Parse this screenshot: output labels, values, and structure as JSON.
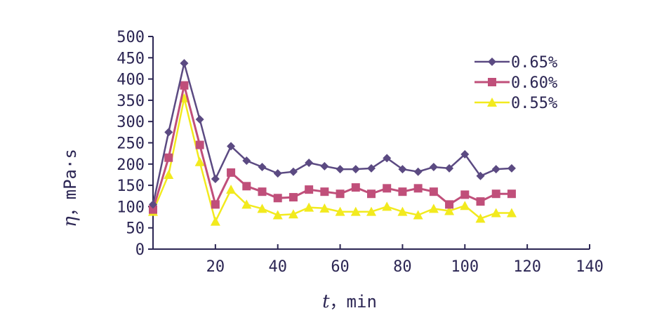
{
  "chart_data": {
    "type": "line",
    "ylabel_symbol": "η",
    "ylabel_unit": "，mPa·s",
    "xlabel_symbol": "t",
    "xlabel_unit": "，min",
    "xlim": [
      0,
      140
    ],
    "ylim": [
      0,
      500
    ],
    "x_ticks": [
      "20",
      "40",
      "60",
      "80",
      "100",
      "120",
      "140"
    ],
    "y_ticks": [
      "0",
      "50",
      "100",
      "150",
      "200",
      "250",
      "300",
      "350",
      "400",
      "450",
      "500"
    ],
    "grid": false,
    "legend_position": "top-right",
    "x": [
      0,
      5,
      10,
      15,
      20,
      25,
      30,
      35,
      40,
      45,
      50,
      55,
      60,
      65,
      70,
      75,
      80,
      85,
      90,
      95,
      100,
      105,
      110,
      115
    ],
    "series": [
      {
        "name": "0.65%",
        "color": "#5b4a82",
        "marker": "diamond",
        "values": [
          105,
          275,
          437,
          305,
          165,
          242,
          208,
          193,
          178,
          182,
          203,
          195,
          188,
          188,
          190,
          214,
          188,
          182,
          193,
          190,
          223,
          172,
          188,
          190
        ]
      },
      {
        "name": "0.60%",
        "color": "#c04f7a",
        "marker": "square",
        "values": [
          93,
          215,
          385,
          245,
          105,
          180,
          148,
          135,
          120,
          122,
          140,
          135,
          130,
          145,
          130,
          143,
          135,
          143,
          135,
          105,
          128,
          112,
          130,
          130
        ]
      },
      {
        "name": "0.55%",
        "color": "#f2ea1e",
        "marker": "triangle",
        "values": [
          88,
          175,
          355,
          205,
          65,
          140,
          105,
          95,
          80,
          82,
          98,
          96,
          88,
          88,
          88,
          100,
          88,
          80,
          95,
          90,
          102,
          72,
          85,
          85
        ]
      }
    ]
  }
}
